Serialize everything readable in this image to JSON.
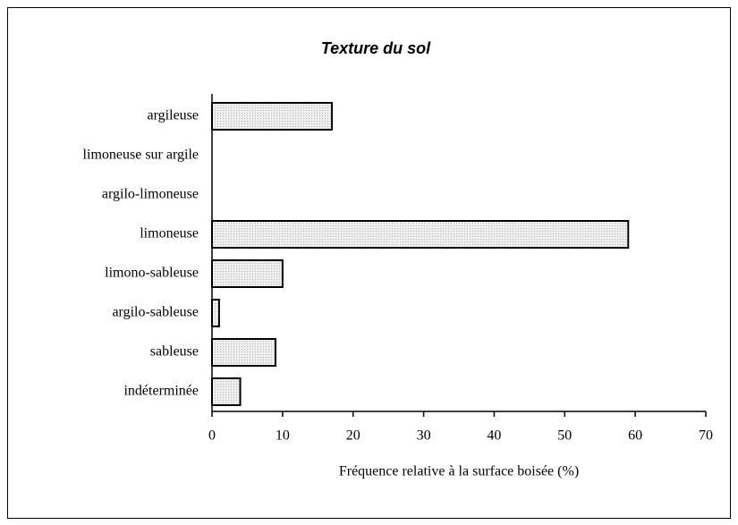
{
  "chart_data": {
    "type": "bar",
    "orientation": "horizontal",
    "title": "Texture du sol",
    "x_label": "Fréquence relative à la surface boisée (%)",
    "categories": [
      "argileuse",
      "limoneuse sur argile",
      "argilo-limoneuse",
      "limoneuse",
      "limono-sableuse",
      "argilo-sableuse",
      "sableuse",
      "indéterminée"
    ],
    "values": [
      17,
      0,
      0,
      59,
      10,
      1,
      9,
      4
    ],
    "color": "#dcdcdc",
    "xlim": [
      0,
      70
    ],
    "xticks": [
      0,
      10,
      20,
      30,
      40,
      50,
      60,
      70
    ],
    "grid": false
  }
}
